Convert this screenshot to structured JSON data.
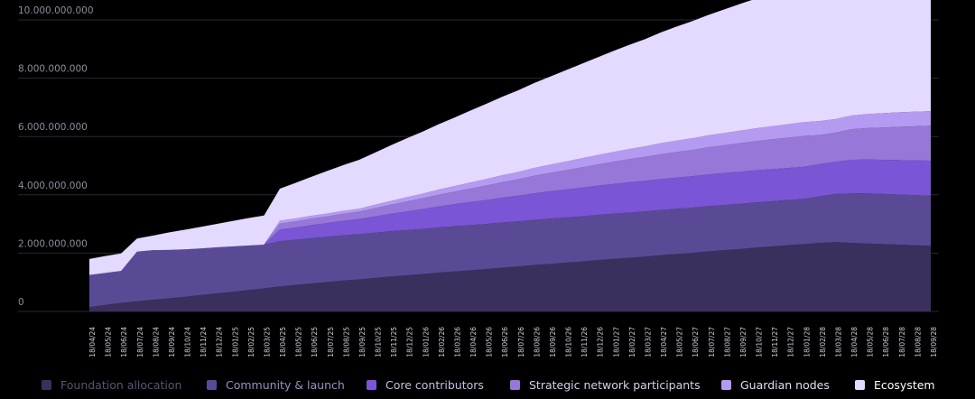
{
  "chart_data": {
    "type": "area",
    "stacked": true,
    "y_ticks": [
      "0",
      "2.000.000.000",
      "4.000.000.000",
      "6.000.000.000",
      "8.000.000.000",
      "10.000.000.000"
    ],
    "ylim": [
      0,
      10000000000
    ],
    "grid": true,
    "x": [
      "18/04/24",
      "18/05/24",
      "18/06/24",
      "18/07/24",
      "18/08/24",
      "18/09/24",
      "18/10/24",
      "18/11/24",
      "18/12/24",
      "18/01/25",
      "18/02/25",
      "18/03/25",
      "18/04/25",
      "18/05/25",
      "18/06/25",
      "18/07/25",
      "18/08/25",
      "18/09/25",
      "18/10/25",
      "18/11/25",
      "18/12/25",
      "18/01/26",
      "18/02/26",
      "18/03/26",
      "18/04/26",
      "18/05/26",
      "18/06/26",
      "18/07/26",
      "18/08/26",
      "18/09/26",
      "18/10/26",
      "18/11/26",
      "18/12/26",
      "18/01/27",
      "18/02/27",
      "18/03/27",
      "18/04/27",
      "18/05/27",
      "18/06/27",
      "18/07/27",
      "18/08/27",
      "18/09/27",
      "18/10/27",
      "18/11/27",
      "18/12/27",
      "18/01/28",
      "18/02/28",
      "18/03/28",
      "18/04/28",
      "18/05/28",
      "18/06/28",
      "18/07/28",
      "18/08/28",
      "18/09/28"
    ],
    "series": [
      {
        "name": "Foundation allocation",
        "color": "#3b2f5e",
        "values": [
          0.15,
          0.22,
          0.29,
          0.35,
          0.4,
          0.45,
          0.5,
          0.56,
          0.62,
          0.67,
          0.73,
          0.79,
          0.86,
          0.91,
          0.96,
          1.01,
          1.06,
          1.1,
          1.15,
          1.2,
          1.24,
          1.28,
          1.33,
          1.37,
          1.41,
          1.45,
          1.5,
          1.54,
          1.59,
          1.63,
          1.67,
          1.71,
          1.76,
          1.8,
          1.84,
          1.88,
          1.93,
          1.97,
          2.01,
          2.06,
          2.1,
          2.14,
          2.19,
          2.23,
          2.27,
          2.31,
          2.35,
          2.38,
          2.35,
          2.33,
          2.31,
          2.29,
          2.27,
          2.25
        ]
      },
      {
        "name": "Community & launch",
        "color": "#5a4a96",
        "values": [
          1.1,
          1.1,
          1.1,
          1.7,
          1.7,
          1.66,
          1.63,
          1.6,
          1.58,
          1.56,
          1.53,
          1.5,
          1.55,
          1.55,
          1.55,
          1.55,
          1.55,
          1.55,
          1.55,
          1.55,
          1.55,
          1.55,
          1.55,
          1.55,
          1.55,
          1.55,
          1.55,
          1.55,
          1.55,
          1.55,
          1.55,
          1.55,
          1.55,
          1.55,
          1.55,
          1.55,
          1.55,
          1.55,
          1.55,
          1.55,
          1.55,
          1.55,
          1.55,
          1.55,
          1.55,
          1.55,
          1.6,
          1.65,
          1.7,
          1.72,
          1.72,
          1.72,
          1.72,
          1.72
        ]
      },
      {
        "name": "Core contributors",
        "color": "#7a55d6",
        "values": [
          0,
          0,
          0,
          0,
          0,
          0,
          0,
          0,
          0,
          0,
          0,
          0,
          0.4,
          0.42,
          0.45,
          0.47,
          0.5,
          0.52,
          0.56,
          0.6,
          0.64,
          0.68,
          0.72,
          0.76,
          0.79,
          0.82,
          0.85,
          0.88,
          0.91,
          0.94,
          0.96,
          0.98,
          1.0,
          1.02,
          1.04,
          1.05,
          1.06,
          1.07,
          1.08,
          1.09,
          1.1,
          1.1,
          1.1,
          1.1,
          1.1,
          1.1,
          1.1,
          1.1,
          1.15,
          1.16,
          1.17,
          1.18,
          1.19,
          1.2
        ]
      },
      {
        "name": "Strategic network participants",
        "color": "#9778d8",
        "values": [
          0,
          0,
          0,
          0,
          0,
          0,
          0,
          0,
          0,
          0,
          0,
          0,
          0.2,
          0.21,
          0.22,
          0.23,
          0.24,
          0.25,
          0.28,
          0.31,
          0.34,
          0.37,
          0.4,
          0.43,
          0.46,
          0.5,
          0.53,
          0.56,
          0.6,
          0.63,
          0.66,
          0.7,
          0.73,
          0.76,
          0.79,
          0.82,
          0.85,
          0.88,
          0.9,
          0.93,
          0.95,
          0.98,
          1.0,
          1.02,
          1.04,
          1.06,
          1.0,
          1.0,
          1.05,
          1.08,
          1.11,
          1.14,
          1.17,
          1.2
        ]
      },
      {
        "name": "Guardian nodes",
        "color": "#b59af2",
        "values": [
          0,
          0,
          0,
          0,
          0,
          0,
          0,
          0,
          0,
          0,
          0,
          0,
          0.1,
          0.1,
          0.1,
          0.1,
          0.1,
          0.1,
          0.12,
          0.13,
          0.15,
          0.16,
          0.18,
          0.19,
          0.21,
          0.22,
          0.24,
          0.25,
          0.27,
          0.28,
          0.3,
          0.31,
          0.32,
          0.34,
          0.35,
          0.36,
          0.38,
          0.39,
          0.4,
          0.41,
          0.42,
          0.43,
          0.44,
          0.45,
          0.46,
          0.47,
          0.48,
          0.47,
          0.47,
          0.48,
          0.49,
          0.5,
          0.5,
          0.5
        ]
      },
      {
        "name": "Ecosystem",
        "color": "#e4d9ff",
        "values": [
          0.55,
          0.58,
          0.6,
          0.45,
          0.5,
          0.6,
          0.67,
          0.74,
          0.8,
          0.87,
          0.94,
          1.0,
          1.1,
          1.22,
          1.34,
          1.46,
          1.57,
          1.68,
          1.79,
          1.91,
          2.02,
          2.13,
          2.24,
          2.35,
          2.47,
          2.58,
          2.69,
          2.8,
          2.91,
          3.02,
          3.13,
          3.24,
          3.35,
          3.46,
          3.57,
          3.68,
          3.8,
          3.91,
          4.02,
          4.13,
          4.24,
          4.35,
          4.45,
          4.55,
          4.66,
          4.75,
          4.65,
          4.65,
          4.67,
          4.7,
          4.75,
          4.8,
          4.86,
          4.9
        ]
      }
    ]
  },
  "legend": {
    "items": [
      {
        "label": "Foundation allocation",
        "color": "#3b2f5e",
        "text_color": "#5b5375"
      },
      {
        "label": "Community & launch",
        "color": "#5a4a96",
        "text_color": "#9a90c2"
      },
      {
        "label": "Core contributors",
        "color": "#7a55d6",
        "text_color": "#c6bee6"
      },
      {
        "label": "Strategic network participants",
        "color": "#9778d8",
        "text_color": "#d6d0ec"
      },
      {
        "label": "Guardian nodes",
        "color": "#b59af2",
        "text_color": "#e2dcf6"
      },
      {
        "label": "Ecosystem",
        "color": "#e4d9ff",
        "text_color": "#ffffff"
      }
    ]
  }
}
